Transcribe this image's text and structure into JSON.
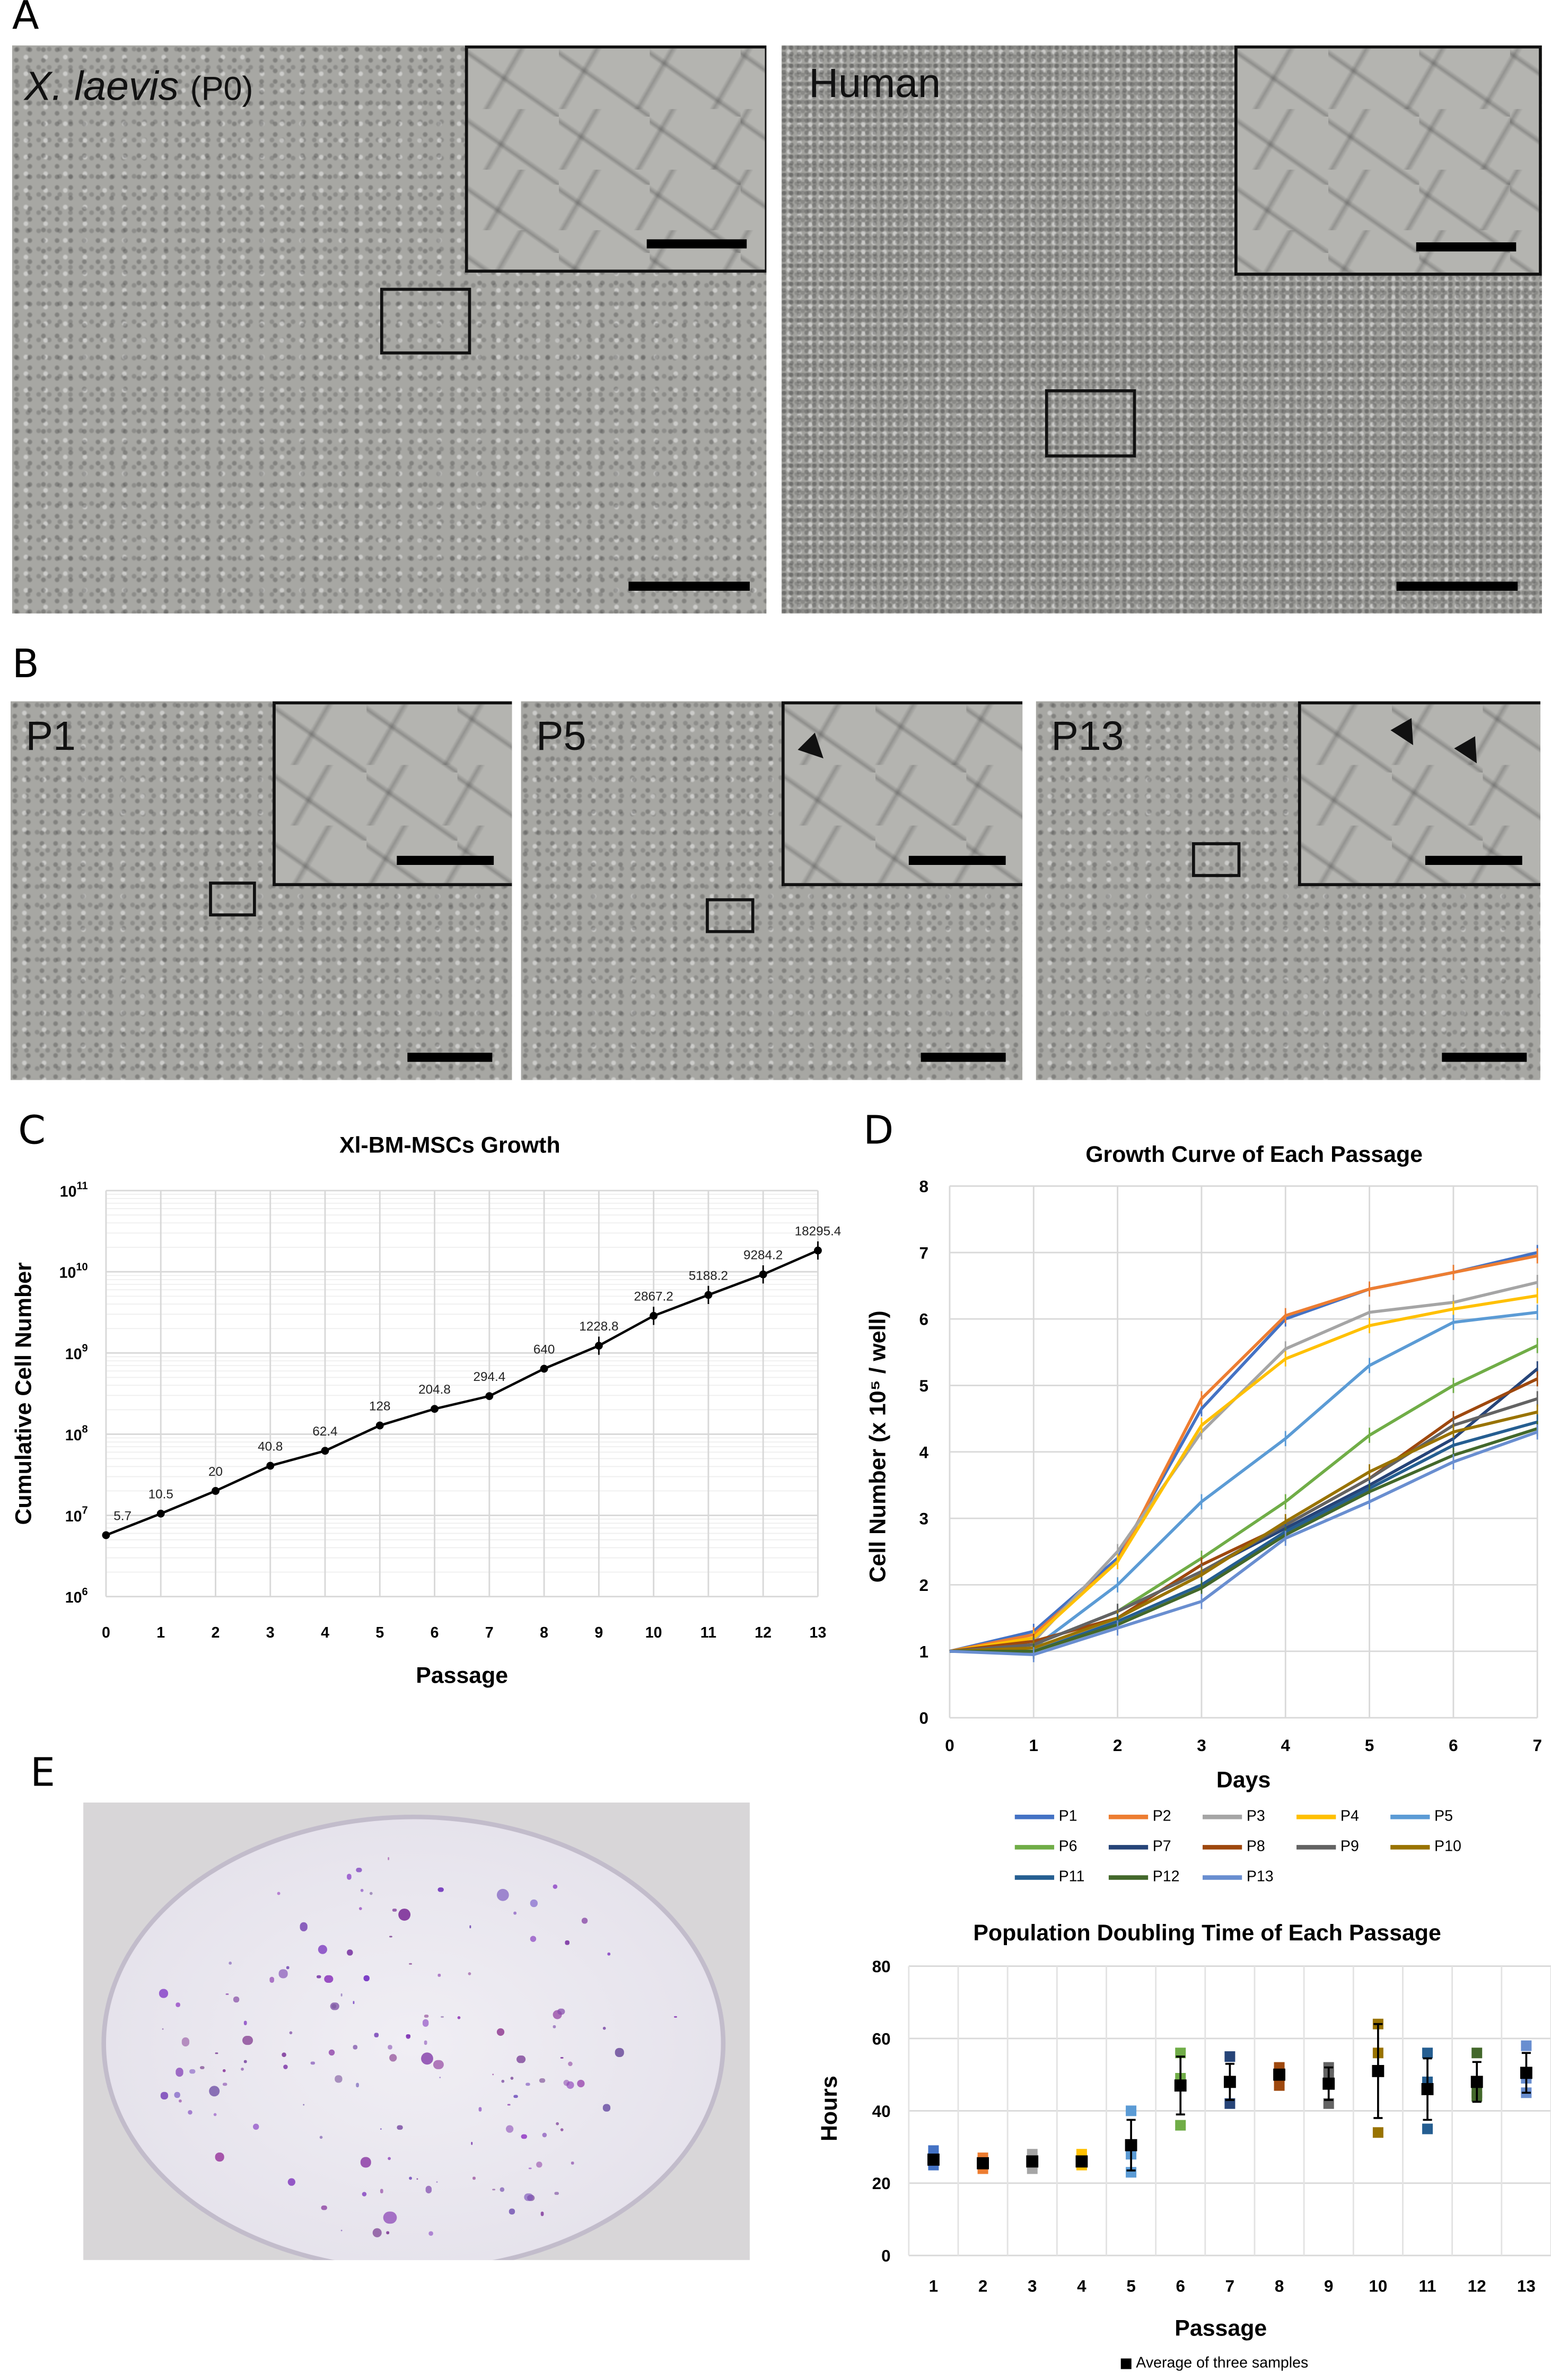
{
  "panels": {
    "A": "A",
    "B": "B",
    "C": "C",
    "D": "D",
    "E": "E"
  },
  "panelA": {
    "left_label_italic": "X. laevis",
    "left_label_suffix": "(P0)",
    "right_label": "Human"
  },
  "panelB": {
    "labels": [
      "P1",
      "P5",
      "P13"
    ]
  },
  "chart_data": [
    {
      "type": "line",
      "title": "Xl-BM-MSCs Growth",
      "xlabel": "Passage",
      "ylabel": "Cumulative Cell Number",
      "yscale": "log",
      "ylim_exponents": [
        6,
        11
      ],
      "ytick_base": "10",
      "ytick_exponents": [
        "6",
        "7",
        "8",
        "9",
        "10",
        "11"
      ],
      "x": [
        0,
        1,
        2,
        3,
        4,
        5,
        6,
        7,
        8,
        9,
        10,
        11,
        12,
        13
      ],
      "values_millions": [
        5.7,
        10.5,
        20,
        40.8,
        62.4,
        128,
        204.8,
        294.4,
        640,
        1228.8,
        2867.2,
        5188.2,
        9284.2,
        18295.4
      ],
      "data_labels": [
        "5.7",
        "10.5",
        "20",
        "40.8",
        "62.4",
        "128",
        "204.8",
        "294.4",
        "640",
        "1228.8",
        "2867.2",
        "5188.2",
        "9284.2",
        "18295.4"
      ],
      "grid": true
    },
    {
      "type": "line",
      "title": "Growth Curve of Each Passage",
      "xlabel": "Days",
      "ylabel": "Cell Number (x 10⁵ / well)",
      "x": [
        0,
        1,
        2,
        3,
        4,
        5,
        6,
        7
      ],
      "xlim": [
        0,
        7
      ],
      "ylim": [
        0,
        8
      ],
      "yticks": [
        0,
        1,
        2,
        3,
        4,
        5,
        6,
        7,
        8
      ],
      "legend_position": "bottom",
      "series": [
        {
          "name": "P1",
          "color": "#4472c4",
          "values": [
            1,
            1.3,
            2.4,
            4.65,
            6.0,
            6.45,
            6.7,
            7.0
          ]
        },
        {
          "name": "P2",
          "color": "#ed7d31",
          "values": [
            1,
            1.25,
            2.35,
            4.8,
            6.05,
            6.45,
            6.7,
            6.95
          ]
        },
        {
          "name": "P3",
          "color": "#a5a5a5",
          "values": [
            1,
            1.15,
            2.5,
            4.3,
            5.55,
            6.1,
            6.25,
            6.55
          ]
        },
        {
          "name": "P4",
          "color": "#ffc000",
          "values": [
            1,
            1.2,
            2.35,
            4.4,
            5.4,
            5.9,
            6.15,
            6.35
          ]
        },
        {
          "name": "P5",
          "color": "#5b9bd5",
          "values": [
            1,
            1.05,
            2.0,
            3.25,
            4.2,
            5.3,
            5.95,
            6.1
          ]
        },
        {
          "name": "P6",
          "color": "#70ad47",
          "values": [
            1,
            1.1,
            1.6,
            2.4,
            3.25,
            4.25,
            5.0,
            5.6
          ]
        },
        {
          "name": "P7",
          "color": "#264478",
          "values": [
            1,
            1.1,
            1.6,
            2.2,
            2.85,
            3.5,
            4.2,
            5.25
          ]
        },
        {
          "name": "P8",
          "color": "#9e480e",
          "values": [
            1,
            1.15,
            1.5,
            2.3,
            2.9,
            3.6,
            4.5,
            5.1
          ]
        },
        {
          "name": "P9",
          "color": "#636363",
          "values": [
            1,
            1.1,
            1.6,
            2.2,
            2.9,
            3.6,
            4.4,
            4.8
          ]
        },
        {
          "name": "P10",
          "color": "#997300",
          "values": [
            1,
            1.05,
            1.5,
            2.15,
            2.95,
            3.7,
            4.3,
            4.6
          ]
        },
        {
          "name": "P11",
          "color": "#255e91",
          "values": [
            1,
            1.0,
            1.45,
            2.0,
            2.8,
            3.45,
            4.1,
            4.45
          ]
        },
        {
          "name": "P12",
          "color": "#43682b",
          "values": [
            1,
            1.0,
            1.4,
            1.95,
            2.75,
            3.4,
            3.95,
            4.35
          ]
        },
        {
          "name": "P13",
          "color": "#698ed0",
          "values": [
            1,
            0.95,
            1.35,
            1.75,
            2.7,
            3.25,
            3.85,
            4.3
          ]
        }
      ]
    },
    {
      "type": "scatter",
      "title": "Population Doubling Time of Each Passage",
      "xlabel": "Passage",
      "ylabel": "Hours",
      "categories": [
        "1",
        "2",
        "3",
        "4",
        "5",
        "6",
        "7",
        "8",
        "9",
        "10",
        "11",
        "12",
        "13"
      ],
      "ylim": [
        0,
        80
      ],
      "yticks": [
        0,
        20,
        40,
        60,
        80
      ],
      "legend": "Average of three samples",
      "sample_colors": [
        "#4472c4",
        "#ed7d31",
        "#a5a5a5",
        "#ffc000",
        "#5b9bd5",
        "#70ad47",
        "#264478",
        "#9e480e",
        "#636363",
        "#997300",
        "#255e91",
        "#43682b",
        "#698ed0"
      ],
      "samples": [
        [
          29,
          25,
          27
        ],
        [
          27,
          24,
          26
        ],
        [
          28,
          24,
          26
        ],
        [
          28,
          25,
          26
        ],
        [
          40,
          28,
          23
        ],
        [
          56,
          49,
          36
        ],
        [
          55,
          48,
          42
        ],
        [
          52,
          50,
          47
        ],
        [
          52,
          50,
          42
        ],
        [
          64,
          56,
          34
        ],
        [
          56,
          48,
          35
        ],
        [
          56,
          45,
          44
        ],
        [
          58,
          49,
          45
        ]
      ],
      "means": [
        26.5,
        25.5,
        26,
        26,
        30.5,
        47,
        48,
        50,
        47.5,
        51,
        46,
        48,
        50.5
      ],
      "errors": [
        0.5,
        0.5,
        0.5,
        0.5,
        7,
        8,
        5,
        1,
        4.5,
        13,
        8.5,
        5.5,
        5.5
      ]
    }
  ]
}
